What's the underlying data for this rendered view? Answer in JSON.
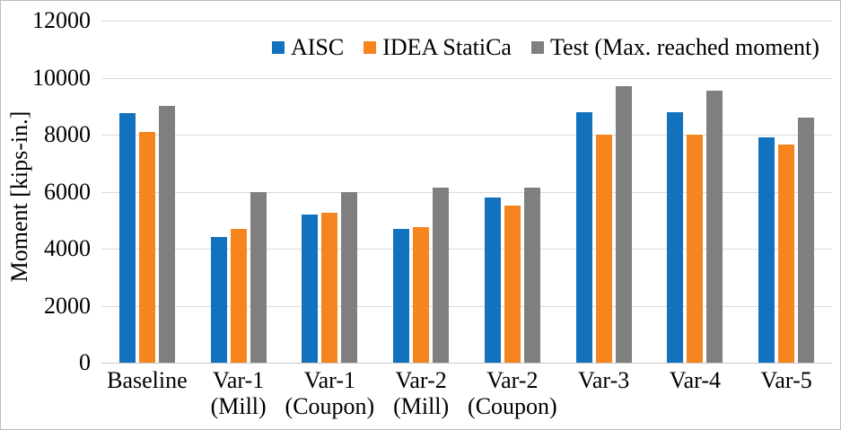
{
  "chart_data": {
    "type": "bar",
    "title": "",
    "xlabel": "",
    "ylabel": "Moment [kips-in.]",
    "ylim": [
      0,
      12000
    ],
    "yticks": [
      0,
      2000,
      4000,
      6000,
      8000,
      10000,
      12000
    ],
    "grid": true,
    "legend_position": "top",
    "categories": [
      "Baseline",
      "Var-1\n(Mill)",
      "Var-1\n(Coupon)",
      "Var-2\n(Mill)",
      "Var-2\n(Coupon)",
      "Var-3",
      "Var-4",
      "Var-5"
    ],
    "series": [
      {
        "name": "AISC",
        "color": "#1272BD",
        "values": [
          8750,
          4400,
          5200,
          4700,
          5800,
          8800,
          8800,
          7900
        ]
      },
      {
        "name": "IDEA StatiCa",
        "color": "#F6851F",
        "values": [
          8100,
          4700,
          5250,
          4750,
          5500,
          8000,
          8000,
          7650
        ]
      },
      {
        "name": "Test (Max. reached moment)",
        "color": "#7F7F7F",
        "values": [
          9000,
          6000,
          6000,
          6150,
          6150,
          9700,
          9550,
          8600
        ]
      }
    ],
    "colors": {
      "gridline": "#d9d9d9",
      "axis_line": "#c6c6c6",
      "text": "#000000",
      "frame_border": "#bebebe"
    }
  }
}
